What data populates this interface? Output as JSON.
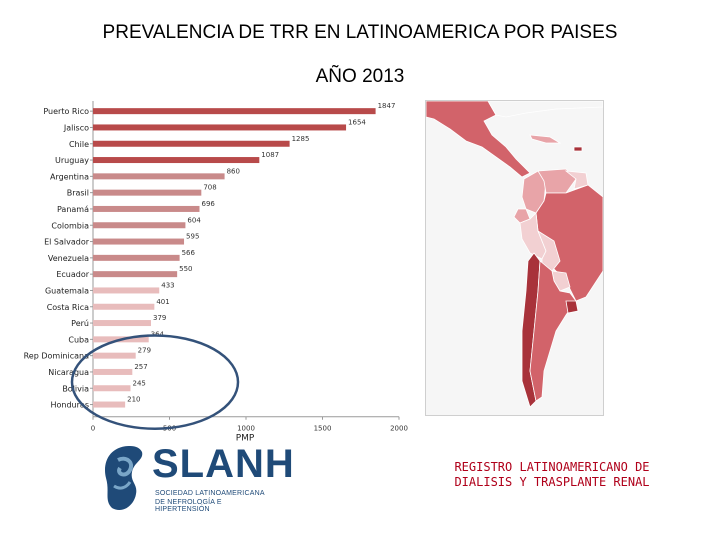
{
  "header": {
    "title_line1": "PREVALENCIA DE TRR EN LATINOAMERICA POR PAISES",
    "title_line2": "AÑO 2013"
  },
  "chart_data": {
    "type": "bar",
    "orientation": "horizontal",
    "title": "PREVALENCIA DE TRR EN LATINOAMERICA POR PAISES - AÑO 2013",
    "xlabel": "PMP",
    "ylabel": "",
    "xlim": [
      0,
      2000
    ],
    "xticks": [
      0,
      500,
      1000,
      1500,
      2000
    ],
    "categories": [
      "Puerto Rico",
      "Jalisco",
      "Chile",
      "Uruguay",
      "Argentina",
      "Brasil",
      "Panamá",
      "Colombia",
      "El Salvador",
      "Venezuela",
      "Ecuador",
      "Guatemala",
      "Costa Rica",
      "Perú",
      "Cuba",
      "Rep Dominicana",
      "Nicaragua",
      "Bolivia",
      "Honduras"
    ],
    "values": [
      1847,
      1654,
      1285,
      1087,
      860,
      708,
      696,
      604,
      595,
      566,
      550,
      433,
      401,
      379,
      364,
      279,
      257,
      245,
      210
    ],
    "bar_colors": [
      "#b84a4a",
      "#b84a4a",
      "#b84a4a",
      "#b84a4a",
      "#c98a8a",
      "#c98a8a",
      "#c98a8a",
      "#c98a8a",
      "#c98a8a",
      "#c98a8a",
      "#c98a8a",
      "#e8bcbc",
      "#e8bcbc",
      "#e8bcbc",
      "#e8bcbc",
      "#e8bcbc",
      "#e8bcbc",
      "#e8bcbc",
      "#e8bcbc"
    ],
    "highlight_circle_color": "#34527a",
    "grid": false
  },
  "map": {
    "label": "Mapa de prevalencia por país",
    "colors": {
      "dark": "#a8323a",
      "medium": "#d2636a",
      "light": "#e8a4a8",
      "pale": "#f2d0d2",
      "ocean": "#f6f6f6"
    }
  },
  "logo": {
    "name": "SLANH",
    "subtitle_line1": "SOCIEDAD LATINOAMERICANA",
    "subtitle_line2": "DE NEFROLOGÍA E HIPERTENSIÓN",
    "color": "#1f4a78",
    "accent": "#7aa6c8"
  },
  "footer": {
    "registry_line1": "REGISTRO LATINOAMERICANO DE",
    "registry_line2": "DIALISIS Y TRASPLANTE RENAL"
  }
}
